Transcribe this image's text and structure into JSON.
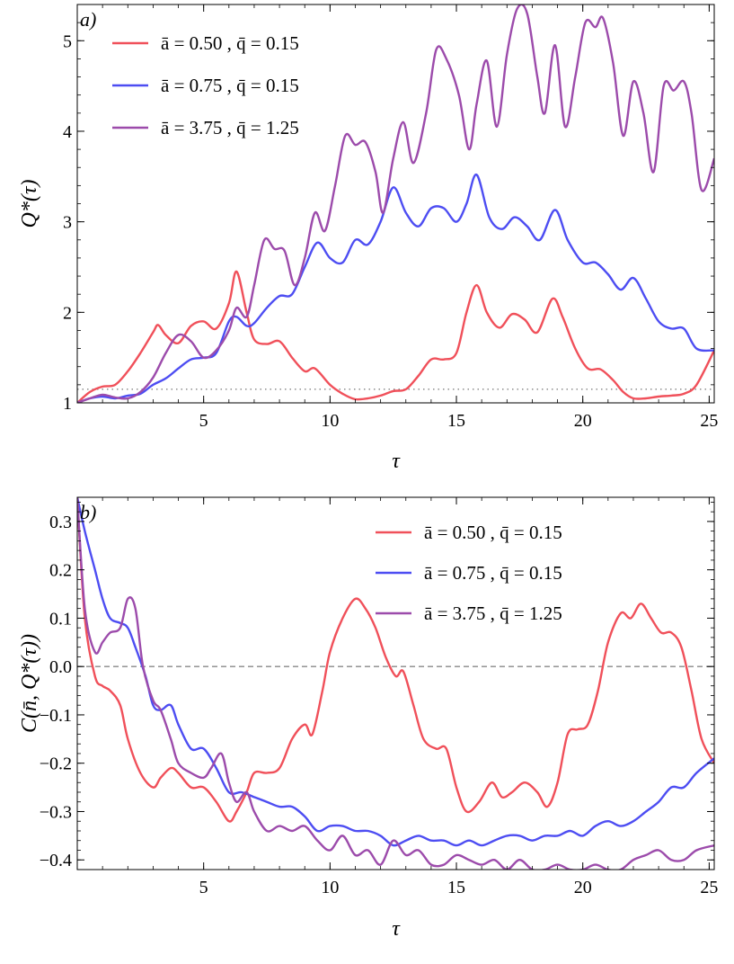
{
  "chart_data": [
    {
      "type": "line",
      "panel_label": "a)",
      "xlabel": "τ",
      "ylabel": "Q*(τ)",
      "xlim": [
        0,
        25.2
      ],
      "ylim": [
        1,
        5.4
      ],
      "xticks": [
        5,
        10,
        15,
        20,
        25
      ],
      "yticks": [
        1,
        2,
        3,
        4,
        5
      ],
      "reference_line": {
        "y": 1.15,
        "style": "dotted",
        "color": "#777777"
      },
      "legend_position": "top-left",
      "series": [
        {
          "name": "ā = 0.50 ,  q̄ = 0.15",
          "color": "#f0505a",
          "x": [
            0,
            0.5,
            1,
            1.5,
            2,
            2.5,
            3,
            3.2,
            3.5,
            4,
            4.5,
            5,
            5.5,
            6,
            6.3,
            6.7,
            7,
            7.5,
            8,
            8.5,
            9,
            9.4,
            10,
            10.5,
            11,
            11.5,
            12,
            12.5,
            13,
            13.5,
            14,
            14.5,
            15,
            15.4,
            15.8,
            16.2,
            16.7,
            17.2,
            17.7,
            18.2,
            18.8,
            19.2,
            19.7,
            20.2,
            20.7,
            21.2,
            21.6,
            22,
            22.5,
            23,
            23.5,
            24,
            24.5,
            25.2
          ],
          "values": [
            1.0,
            1.12,
            1.18,
            1.2,
            1.35,
            1.55,
            1.78,
            1.86,
            1.75,
            1.66,
            1.85,
            1.9,
            1.82,
            2.1,
            2.45,
            2.0,
            1.7,
            1.65,
            1.68,
            1.5,
            1.35,
            1.38,
            1.2,
            1.1,
            1.04,
            1.05,
            1.08,
            1.13,
            1.15,
            1.3,
            1.48,
            1.48,
            1.55,
            2.0,
            2.3,
            2.0,
            1.83,
            1.98,
            1.92,
            1.78,
            2.15,
            1.95,
            1.6,
            1.38,
            1.37,
            1.25,
            1.12,
            1.05,
            1.05,
            1.07,
            1.08,
            1.1,
            1.2,
            1.58
          ]
        },
        {
          "name": "ā = 0.75 ,  q̄ = 0.15",
          "color": "#4d4df2",
          "x": [
            0,
            0.5,
            1,
            1.5,
            2,
            2.5,
            3,
            3.5,
            4,
            4.5,
            5,
            5.5,
            6,
            6.3,
            6.7,
            7,
            7.5,
            8,
            8.5,
            9,
            9.5,
            10,
            10.5,
            11,
            11.5,
            12,
            12.5,
            13,
            13.5,
            14,
            14.5,
            15,
            15.4,
            15.8,
            16.3,
            16.8,
            17.3,
            17.8,
            18.3,
            18.9,
            19.4,
            20,
            20.5,
            21,
            21.5,
            22,
            22.5,
            23,
            23.5,
            24,
            24.5,
            25.2
          ],
          "values": [
            1.0,
            1.05,
            1.07,
            1.05,
            1.08,
            1.1,
            1.2,
            1.27,
            1.38,
            1.48,
            1.5,
            1.55,
            1.9,
            1.95,
            1.85,
            1.88,
            2.05,
            2.18,
            2.2,
            2.5,
            2.77,
            2.6,
            2.55,
            2.8,
            2.75,
            3.0,
            3.38,
            3.1,
            2.95,
            3.15,
            3.15,
            3.0,
            3.2,
            3.52,
            3.05,
            2.92,
            3.05,
            2.95,
            2.8,
            3.13,
            2.8,
            2.55,
            2.55,
            2.42,
            2.25,
            2.38,
            2.15,
            1.9,
            1.82,
            1.82,
            1.6,
            1.58
          ]
        },
        {
          "name": "ā = 3.75 ,  q̄ = 1.25",
          "color": "#9c4bab",
          "x": [
            0,
            0.5,
            1,
            1.5,
            2,
            2.5,
            3,
            3.5,
            4,
            4.5,
            5,
            5.5,
            6,
            6.3,
            6.7,
            7,
            7.4,
            7.8,
            8.2,
            8.6,
            9,
            9.4,
            9.8,
            10.2,
            10.6,
            11,
            11.4,
            11.8,
            12.1,
            12.5,
            12.9,
            13.3,
            13.8,
            14.2,
            14.6,
            15.1,
            15.5,
            15.8,
            16.2,
            16.6,
            17.0,
            17.4,
            17.8,
            18.2,
            18.5,
            18.9,
            19.3,
            19.7,
            20.1,
            20.5,
            20.8,
            21.2,
            21.6,
            22.0,
            22.4,
            22.8,
            23.2,
            23.6,
            24.0,
            24.3,
            24.7,
            25.2
          ],
          "values": [
            1.0,
            1.05,
            1.09,
            1.06,
            1.05,
            1.12,
            1.28,
            1.55,
            1.75,
            1.68,
            1.5,
            1.58,
            1.8,
            2.05,
            1.95,
            2.3,
            2.8,
            2.7,
            2.68,
            2.3,
            2.6,
            3.1,
            2.9,
            3.4,
            3.95,
            3.85,
            3.88,
            3.55,
            3.1,
            3.7,
            4.1,
            3.65,
            4.2,
            4.9,
            4.8,
            4.4,
            3.8,
            4.3,
            4.78,
            4.05,
            4.85,
            5.35,
            5.3,
            4.6,
            4.2,
            4.95,
            4.05,
            4.6,
            5.2,
            5.15,
            5.25,
            4.75,
            3.95,
            4.55,
            4.2,
            3.55,
            4.5,
            4.45,
            4.55,
            4.2,
            3.35,
            3.7
          ]
        }
      ]
    },
    {
      "type": "line",
      "panel_label": "b)",
      "xlabel": "τ",
      "ylabel": "C(n̄, Q*(τ))",
      "xlim": [
        0,
        25.2
      ],
      "ylim": [
        -0.42,
        0.35
      ],
      "xticks": [
        5,
        10,
        15,
        20,
        25
      ],
      "yticks": [
        0.3,
        0.2,
        0.1,
        0.0,
        -0.1,
        -0.2,
        -0.3,
        -0.4
      ],
      "ytick_labels": [
        "0.3",
        "0.2",
        "0.1",
        "0.0",
        "−0.1",
        "−0.2",
        "−0.3",
        "−0.4"
      ],
      "reference_line": {
        "y": 0.0,
        "style": "dashed",
        "color": "#888888"
      },
      "legend_position": "top-right",
      "series": [
        {
          "name": "ā = 0.50 ,  q̄ = 0.15",
          "color": "#f0505a",
          "x": [
            0,
            0.3,
            0.7,
            1.0,
            1.3,
            1.7,
            2.0,
            2.5,
            3.0,
            3.3,
            3.7,
            4.0,
            4.5,
            5.0,
            5.5,
            6.0,
            6.3,
            6.7,
            7.0,
            7.5,
            8.0,
            8.5,
            9.0,
            9.3,
            9.7,
            10.0,
            10.5,
            11.0,
            11.4,
            11.8,
            12.2,
            12.6,
            12.9,
            13.3,
            13.7,
            14.2,
            14.6,
            15.0,
            15.4,
            15.9,
            16.4,
            16.8,
            17.2,
            17.7,
            18.2,
            18.6,
            19.0,
            19.4,
            19.8,
            20.2,
            20.6,
            21.0,
            21.5,
            21.9,
            22.3,
            22.7,
            23.1,
            23.5,
            23.9,
            24.3,
            24.7,
            25.2
          ],
          "values": [
            0.35,
            0.1,
            -0.02,
            -0.04,
            -0.05,
            -0.08,
            -0.15,
            -0.22,
            -0.25,
            -0.23,
            -0.21,
            -0.22,
            -0.25,
            -0.25,
            -0.28,
            -0.32,
            -0.3,
            -0.26,
            -0.22,
            -0.22,
            -0.21,
            -0.15,
            -0.12,
            -0.14,
            -0.05,
            0.03,
            0.1,
            0.14,
            0.12,
            0.08,
            0.02,
            -0.02,
            -0.01,
            -0.08,
            -0.15,
            -0.17,
            -0.17,
            -0.25,
            -0.3,
            -0.28,
            -0.24,
            -0.27,
            -0.26,
            -0.24,
            -0.26,
            -0.29,
            -0.24,
            -0.14,
            -0.13,
            -0.12,
            -0.05,
            0.05,
            0.11,
            0.1,
            0.13,
            0.1,
            0.07,
            0.07,
            0.04,
            -0.05,
            -0.15,
            -0.2
          ]
        },
        {
          "name": "ā = 0.75 ,  q̄ = 0.15",
          "color": "#4d4df2",
          "x": [
            0,
            0.3,
            0.7,
            1.0,
            1.3,
            1.7,
            2.0,
            2.3,
            2.7,
            3.0,
            3.3,
            3.7,
            4.0,
            4.5,
            5.0,
            5.5,
            6.0,
            6.5,
            7.0,
            7.5,
            8.0,
            8.5,
            9.0,
            9.5,
            10.0,
            10.5,
            11.0,
            11.5,
            12.0,
            12.5,
            13.0,
            13.5,
            14.0,
            14.5,
            15.0,
            15.5,
            16.0,
            16.5,
            17.0,
            17.5,
            18.0,
            18.5,
            19.0,
            19.5,
            20.0,
            20.5,
            21.0,
            21.5,
            22.0,
            22.5,
            23.0,
            23.5,
            24.0,
            24.5,
            25.2
          ],
          "values": [
            0.35,
            0.28,
            0.2,
            0.14,
            0.1,
            0.09,
            0.08,
            0.04,
            -0.02,
            -0.08,
            -0.09,
            -0.08,
            -0.12,
            -0.17,
            -0.17,
            -0.21,
            -0.26,
            -0.26,
            -0.27,
            -0.28,
            -0.29,
            -0.29,
            -0.31,
            -0.34,
            -0.33,
            -0.33,
            -0.34,
            -0.34,
            -0.35,
            -0.37,
            -0.36,
            -0.35,
            -0.36,
            -0.36,
            -0.37,
            -0.36,
            -0.37,
            -0.36,
            -0.35,
            -0.35,
            -0.36,
            -0.35,
            -0.35,
            -0.34,
            -0.35,
            -0.33,
            -0.32,
            -0.33,
            -0.32,
            -0.3,
            -0.28,
            -0.25,
            -0.25,
            -0.22,
            -0.19
          ]
        },
        {
          "name": "ā = 3.75 ,  q̄ = 1.25",
          "color": "#9c4bab",
          "x": [
            0,
            0.3,
            0.7,
            1.0,
            1.3,
            1.7,
            2.0,
            2.3,
            2.6,
            3.0,
            3.3,
            3.7,
            4.0,
            4.5,
            5.0,
            5.3,
            5.7,
            6.0,
            6.3,
            6.7,
            7.0,
            7.5,
            8.0,
            8.5,
            9.0,
            9.5,
            10.0,
            10.5,
            11.0,
            11.5,
            12.0,
            12.5,
            13.0,
            13.5,
            14.0,
            14.5,
            15.0,
            15.5,
            16.0,
            16.5,
            17.0,
            17.5,
            18.0,
            18.5,
            19.0,
            19.5,
            20.0,
            20.5,
            21.0,
            21.5,
            22.0,
            22.5,
            23.0,
            23.5,
            24.0,
            24.5,
            25.2
          ],
          "values": [
            0.35,
            0.12,
            0.03,
            0.05,
            0.07,
            0.08,
            0.14,
            0.12,
            0.0,
            -0.07,
            -0.09,
            -0.15,
            -0.2,
            -0.22,
            -0.23,
            -0.21,
            -0.18,
            -0.24,
            -0.28,
            -0.26,
            -0.3,
            -0.34,
            -0.33,
            -0.34,
            -0.33,
            -0.36,
            -0.38,
            -0.35,
            -0.39,
            -0.38,
            -0.41,
            -0.36,
            -0.39,
            -0.38,
            -0.41,
            -0.41,
            -0.39,
            -0.4,
            -0.41,
            -0.4,
            -0.42,
            -0.4,
            -0.42,
            -0.42,
            -0.41,
            -0.42,
            -0.42,
            -0.41,
            -0.42,
            -0.42,
            -0.4,
            -0.39,
            -0.38,
            -0.4,
            -0.4,
            -0.38,
            -0.37
          ]
        }
      ]
    }
  ]
}
